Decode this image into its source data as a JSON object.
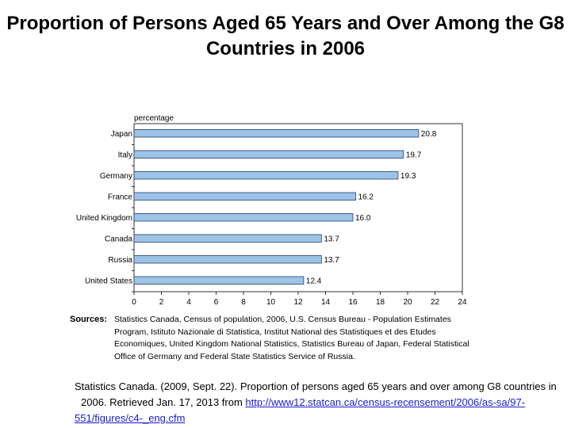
{
  "page_title": "Proportion of Persons Aged 65 Years and Over Among the G8 Countries in 2006",
  "chart_data": {
    "type": "bar",
    "orientation": "horizontal",
    "title": "",
    "ylabel": "percentage",
    "xlabel": "",
    "categories": [
      "Japan",
      "Italy",
      "Germany",
      "France",
      "United Kingdom",
      "Canada",
      "Russia",
      "United States"
    ],
    "values": [
      20.8,
      19.7,
      19.3,
      16.2,
      16.0,
      13.7,
      13.7,
      12.4
    ],
    "value_labels": [
      "20.8",
      "19.7",
      "19.3",
      "16.2",
      "16.0",
      "13.7",
      "13.7",
      "12.4"
    ],
    "xlim": [
      0,
      24
    ],
    "xticks": [
      0,
      2,
      4,
      6,
      8,
      10,
      12,
      14,
      16,
      18,
      20,
      22,
      24
    ],
    "bar_color": "#9dc3e6",
    "bar_border": "#1f3f6e",
    "grid": false
  },
  "source": {
    "label": "Sources:",
    "text": "Statistics Canada, Census of population, 2006, U.S. Census Bureau - Population Estimates Program, Istituto Nazionale di Statistica, Institut National des Statistiques et des Etudes Economiques, United Kingdom National Statistics, Statistics Bureau of Japan, Federal Statistical Office of Germany and Federal State Statistics Service of Russia."
  },
  "citation": {
    "text_line1": "Statistics Canada. (2009, Sept. 22). Proportion of persons aged 65 years and over among G8 countries in",
    "text_line2": "2006. Retrieved Jan. 17, 2013 from",
    "link": "http://www12.statcan.ca/census-recensement/2006/as-sa/97-551/figures/c4-_eng.cfm"
  }
}
